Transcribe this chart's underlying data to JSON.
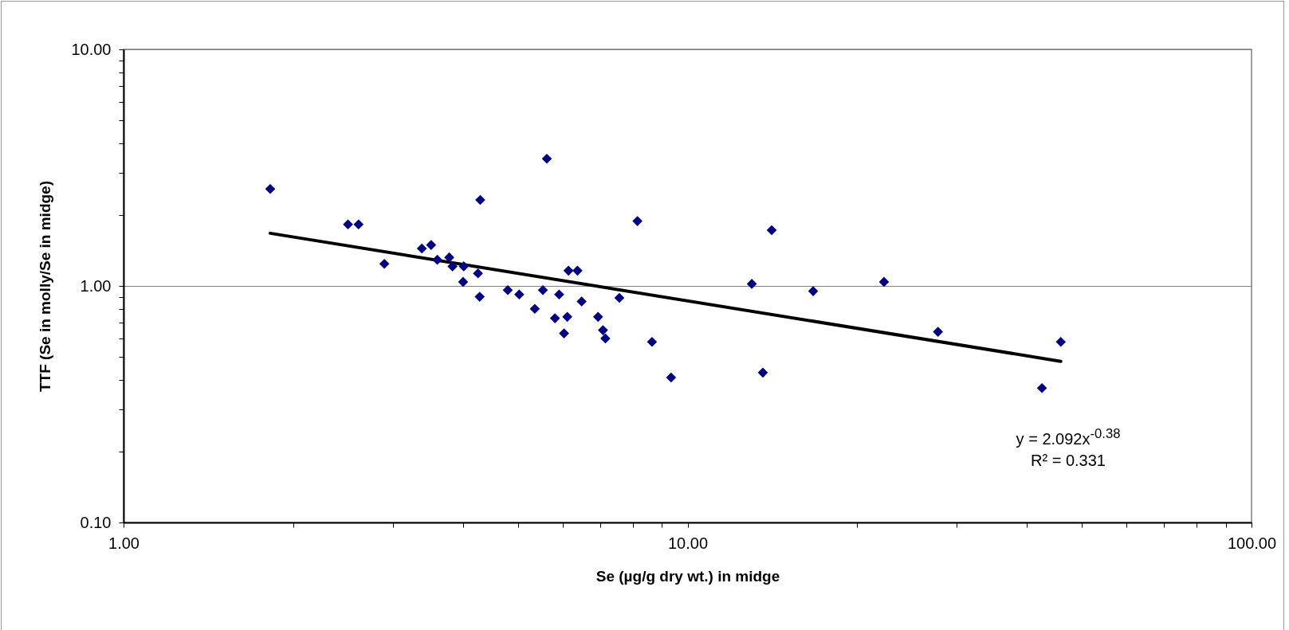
{
  "chart_data": {
    "type": "scatter",
    "xlabel": "Se (µg/g dry wt.) in midge",
    "ylabel": "TTF (Se in molly/Se in midge)",
    "log": "xy",
    "grid": "y",
    "marker": "diamond",
    "xlim": [
      1,
      100
    ],
    "ylim": [
      0.1,
      10
    ],
    "xticks": [
      {
        "value": 1,
        "label": "1.00"
      },
      {
        "value": 2,
        "label": null
      },
      {
        "value": 3,
        "label": null
      },
      {
        "value": 4,
        "label": null
      },
      {
        "value": 5,
        "label": null
      },
      {
        "value": 6,
        "label": null
      },
      {
        "value": 7,
        "label": null
      },
      {
        "value": 8,
        "label": null
      },
      {
        "value": 9,
        "label": null
      },
      {
        "value": 10,
        "label": "10.00"
      },
      {
        "value": 20,
        "label": null
      },
      {
        "value": 30,
        "label": null
      },
      {
        "value": 40,
        "label": null
      },
      {
        "value": 50,
        "label": null
      },
      {
        "value": 60,
        "label": null
      },
      {
        "value": 70,
        "label": null
      },
      {
        "value": 80,
        "label": null
      },
      {
        "value": 90,
        "label": null
      },
      {
        "value": 100,
        "label": "100.00"
      }
    ],
    "yticks": [
      {
        "value": 0.1,
        "label": "0.10"
      },
      {
        "value": 0.2,
        "label": null
      },
      {
        "value": 0.3,
        "label": null
      },
      {
        "value": 0.4,
        "label": null
      },
      {
        "value": 0.5,
        "label": null
      },
      {
        "value": 0.6,
        "label": null
      },
      {
        "value": 0.7,
        "label": null
      },
      {
        "value": 0.8,
        "label": null
      },
      {
        "value": 0.9,
        "label": null
      },
      {
        "value": 1,
        "label": "1.00"
      },
      {
        "value": 2,
        "label": null
      },
      {
        "value": 3,
        "label": null
      },
      {
        "value": 4,
        "label": null
      },
      {
        "value": 5,
        "label": null
      },
      {
        "value": 6,
        "label": null
      },
      {
        "value": 7,
        "label": null
      },
      {
        "value": 8,
        "label": null
      },
      {
        "value": 9,
        "label": null
      },
      {
        "value": 10,
        "label": "10.00"
      }
    ],
    "series": [
      {
        "color": "#000080",
        "x": [
          1.82,
          2.5,
          2.61,
          2.9,
          3.38,
          3.51,
          3.6,
          3.78,
          3.83,
          4.01,
          4.0,
          4.25,
          4.29,
          4.28,
          4.8,
          5.03,
          5.36,
          5.54,
          5.63,
          5.82,
          5.92,
          6.04,
          6.12,
          6.15,
          6.38,
          6.49,
          6.94,
          7.08,
          7.15,
          7.57,
          8.15,
          8.65,
          9.35,
          13.0,
          13.6,
          14.1,
          16.7,
          22.3,
          27.8,
          42.5,
          45.9
        ],
        "values": [
          2.57,
          1.82,
          1.82,
          1.24,
          1.44,
          1.49,
          1.29,
          1.32,
          1.21,
          1.21,
          1.04,
          1.13,
          2.31,
          0.9,
          0.96,
          0.92,
          0.8,
          0.96,
          3.45,
          0.73,
          0.92,
          0.63,
          0.74,
          1.16,
          1.16,
          0.86,
          0.74,
          0.65,
          0.6,
          0.89,
          1.88,
          0.58,
          0.41,
          1.02,
          0.43,
          1.72,
          0.95,
          1.04,
          0.64,
          0.37,
          0.58
        ]
      },
      {
        "type": "line",
        "color": "#000000",
        "line_style": "solid",
        "marker": "none",
        "x": [
          1.82,
          45.9
        ],
        "values": [
          1.67,
          0.48
        ]
      }
    ],
    "annotations": [
      "y = 2.092x$^{-0.38}$",
      "R² = 0.331"
    ]
  }
}
